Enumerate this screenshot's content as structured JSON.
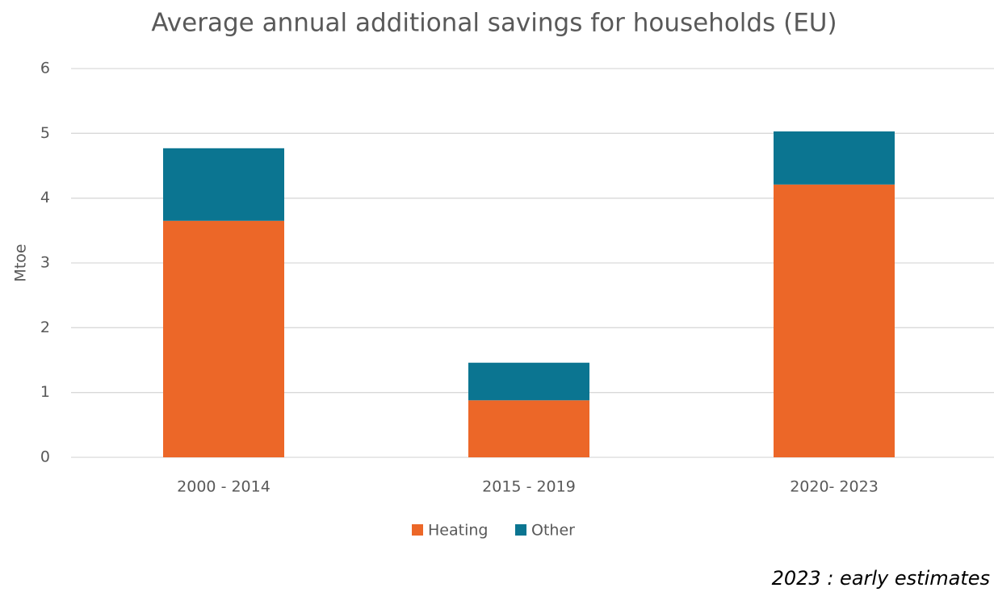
{
  "chart_data": {
    "type": "stacked_bar",
    "title": "Average annual additional savings for households (EU)",
    "y_label": "Mtoe",
    "categories": [
      "2000 - 2014",
      "2015 - 2019",
      "2020- 2023"
    ],
    "series": [
      {
        "name": "Heating",
        "color": "#ec6728",
        "values": [
          3.65,
          0.88,
          4.21
        ]
      },
      {
        "name": "Other",
        "color": "#0b7591",
        "values": [
          1.12,
          0.58,
          0.82
        ]
      }
    ],
    "ylim": [
      0,
      6
    ],
    "yticks": [
      0,
      1,
      2,
      3,
      4,
      5,
      6
    ],
    "grid": true,
    "legend": "bottom",
    "annotation": "2023 : early estimates"
  }
}
